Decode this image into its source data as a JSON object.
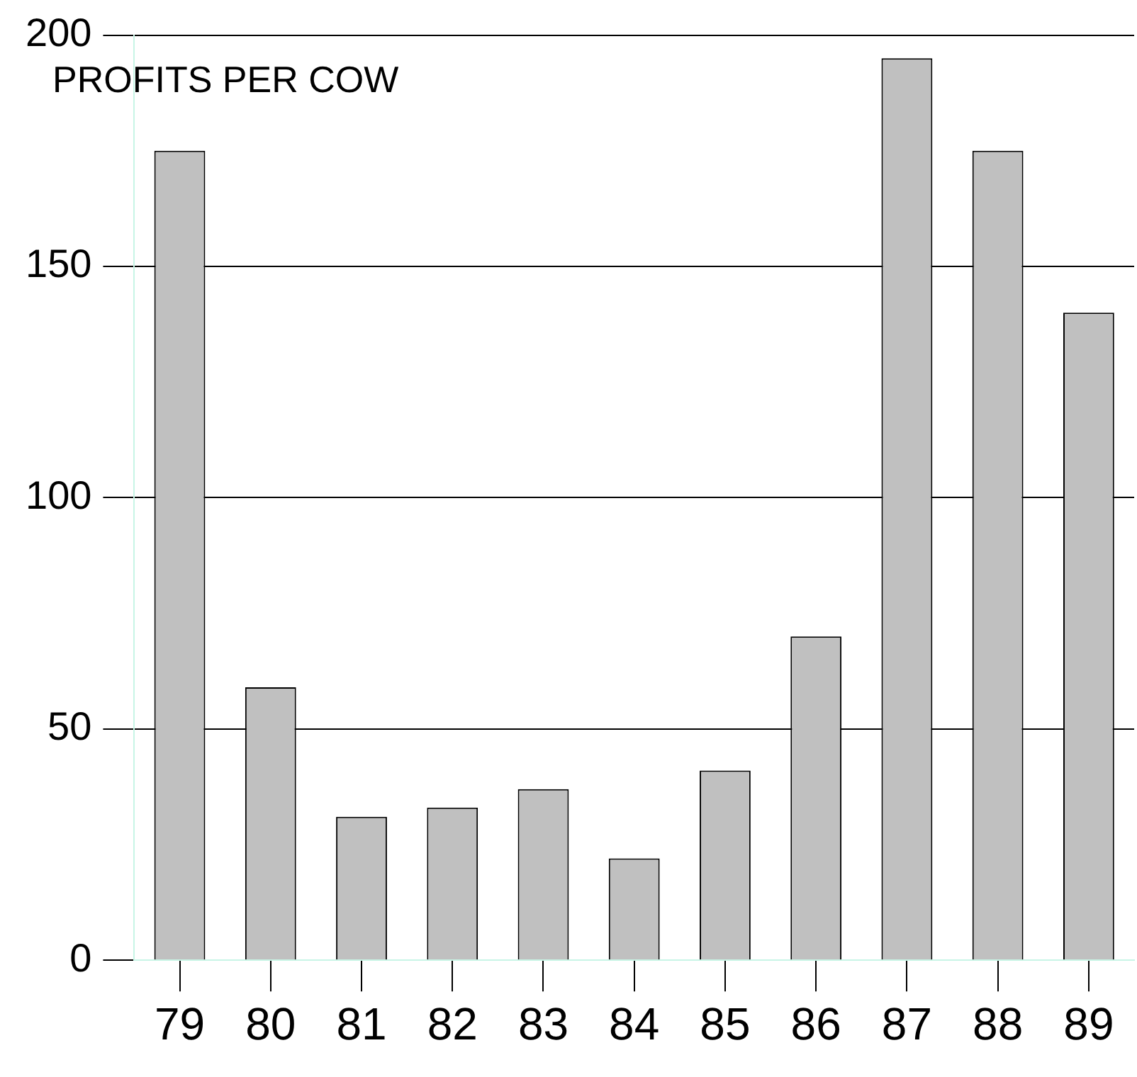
{
  "chart_data": {
    "type": "bar",
    "title": "PROFITS PER COW",
    "categories": [
      "79",
      "80",
      "81",
      "82",
      "83",
      "84",
      "85",
      "86",
      "87",
      "88",
      "89"
    ],
    "values": [
      175,
      59,
      31,
      33,
      37,
      22,
      41,
      70,
      195,
      175,
      140
    ],
    "color": "#c0c0c0",
    "ylim": [
      0,
      200
    ],
    "yticks": [
      0,
      50,
      100,
      150,
      200
    ],
    "grid": "y",
    "legend": false
  }
}
